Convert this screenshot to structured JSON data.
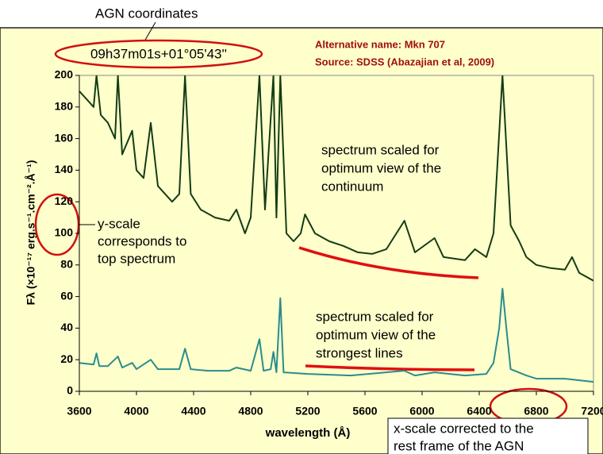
{
  "chart_data": {
    "type": "line",
    "top_label": "AGN coordinates",
    "coordinates": "09h37m01s+01°05'43''",
    "info": [
      "Alternative name: Mkn 707",
      "Source: SDSS (Abazajian et al, 2009)"
    ],
    "xlabel": "wavelength (Å)",
    "ylabel": "Fλ (×10⁻¹⁷ erg.s⁻¹.cm⁻².Å⁻¹)",
    "xlim": [
      3600,
      7200
    ],
    "xticks": [
      3600,
      4000,
      4400,
      4800,
      5200,
      5600,
      6000,
      6400,
      6800,
      7200
    ],
    "ylim": [
      0,
      200
    ],
    "yticks": [
      0,
      20,
      40,
      60,
      80,
      100,
      120,
      140,
      160,
      180,
      200
    ],
    "series": [
      {
        "color": "#143c14",
        "x": [
          3600,
          3650,
          3700,
          3720,
          3750,
          3800,
          3850,
          3870,
          3900,
          3970,
          4000,
          4050,
          4100,
          4150,
          4200,
          4250,
          4300,
          4340,
          4380,
          4450,
          4550,
          4650,
          4700,
          4760,
          4800,
          4861,
          4900,
          4959,
          4980,
          5007,
          5050,
          5100,
          5150,
          5180,
          5250,
          5350,
          5450,
          5550,
          5650,
          5750,
          5876,
          5950,
          6087,
          6150,
          6300,
          6370,
          6450,
          6500,
          6563,
          6620,
          6680,
          6730,
          6800,
          6900,
          7000,
          7050,
          7100,
          7200
        ],
        "values": [
          190,
          185,
          180,
          200,
          175,
          170,
          160,
          200,
          150,
          165,
          140,
          135,
          170,
          130,
          125,
          120,
          125,
          200,
          125,
          115,
          110,
          108,
          115,
          100,
          110,
          200,
          115,
          200,
          110,
          200,
          100,
          95,
          100,
          112,
          100,
          95,
          92,
          88,
          87,
          90,
          108,
          88,
          97,
          85,
          83,
          90,
          85,
          100,
          200,
          105,
          95,
          85,
          80,
          78,
          77,
          85,
          75,
          70
        ]
      },
      {
        "color": "#2a8c8c",
        "x": [
          3600,
          3700,
          3720,
          3740,
          3800,
          3870,
          3900,
          3970,
          4000,
          4100,
          4150,
          4300,
          4340,
          4380,
          4500,
          4650,
          4700,
          4800,
          4861,
          4890,
          4940,
          4959,
          4980,
          5007,
          5030,
          5200,
          5500,
          5876,
          5950,
          6087,
          6300,
          6450,
          6500,
          6540,
          6563,
          6590,
          6620,
          6730,
          6800,
          7000,
          7200
        ],
        "values": [
          18,
          17,
          24,
          16,
          16,
          22,
          15,
          18,
          14,
          20,
          14,
          14,
          27,
          14,
          13,
          13,
          15,
          13,
          33,
          13,
          14,
          25,
          12,
          59,
          12,
          11,
          10,
          13,
          10,
          12,
          10,
          11,
          18,
          40,
          65,
          40,
          14,
          10,
          8,
          8,
          6
        ]
      }
    ],
    "annotations": [
      {
        "lines": [
          "spectrum scaled for",
          "optimum view of the",
          "continuum"
        ]
      },
      {
        "lines": [
          "y-scale",
          "corresponds to",
          "top spectrum"
        ]
      },
      {
        "lines": [
          "spectrum scaled for",
          "optimum view of the",
          "strongest lines"
        ]
      },
      {
        "lines": [
          "x-scale corrected to the",
          "rest frame of the AGN"
        ]
      }
    ]
  }
}
